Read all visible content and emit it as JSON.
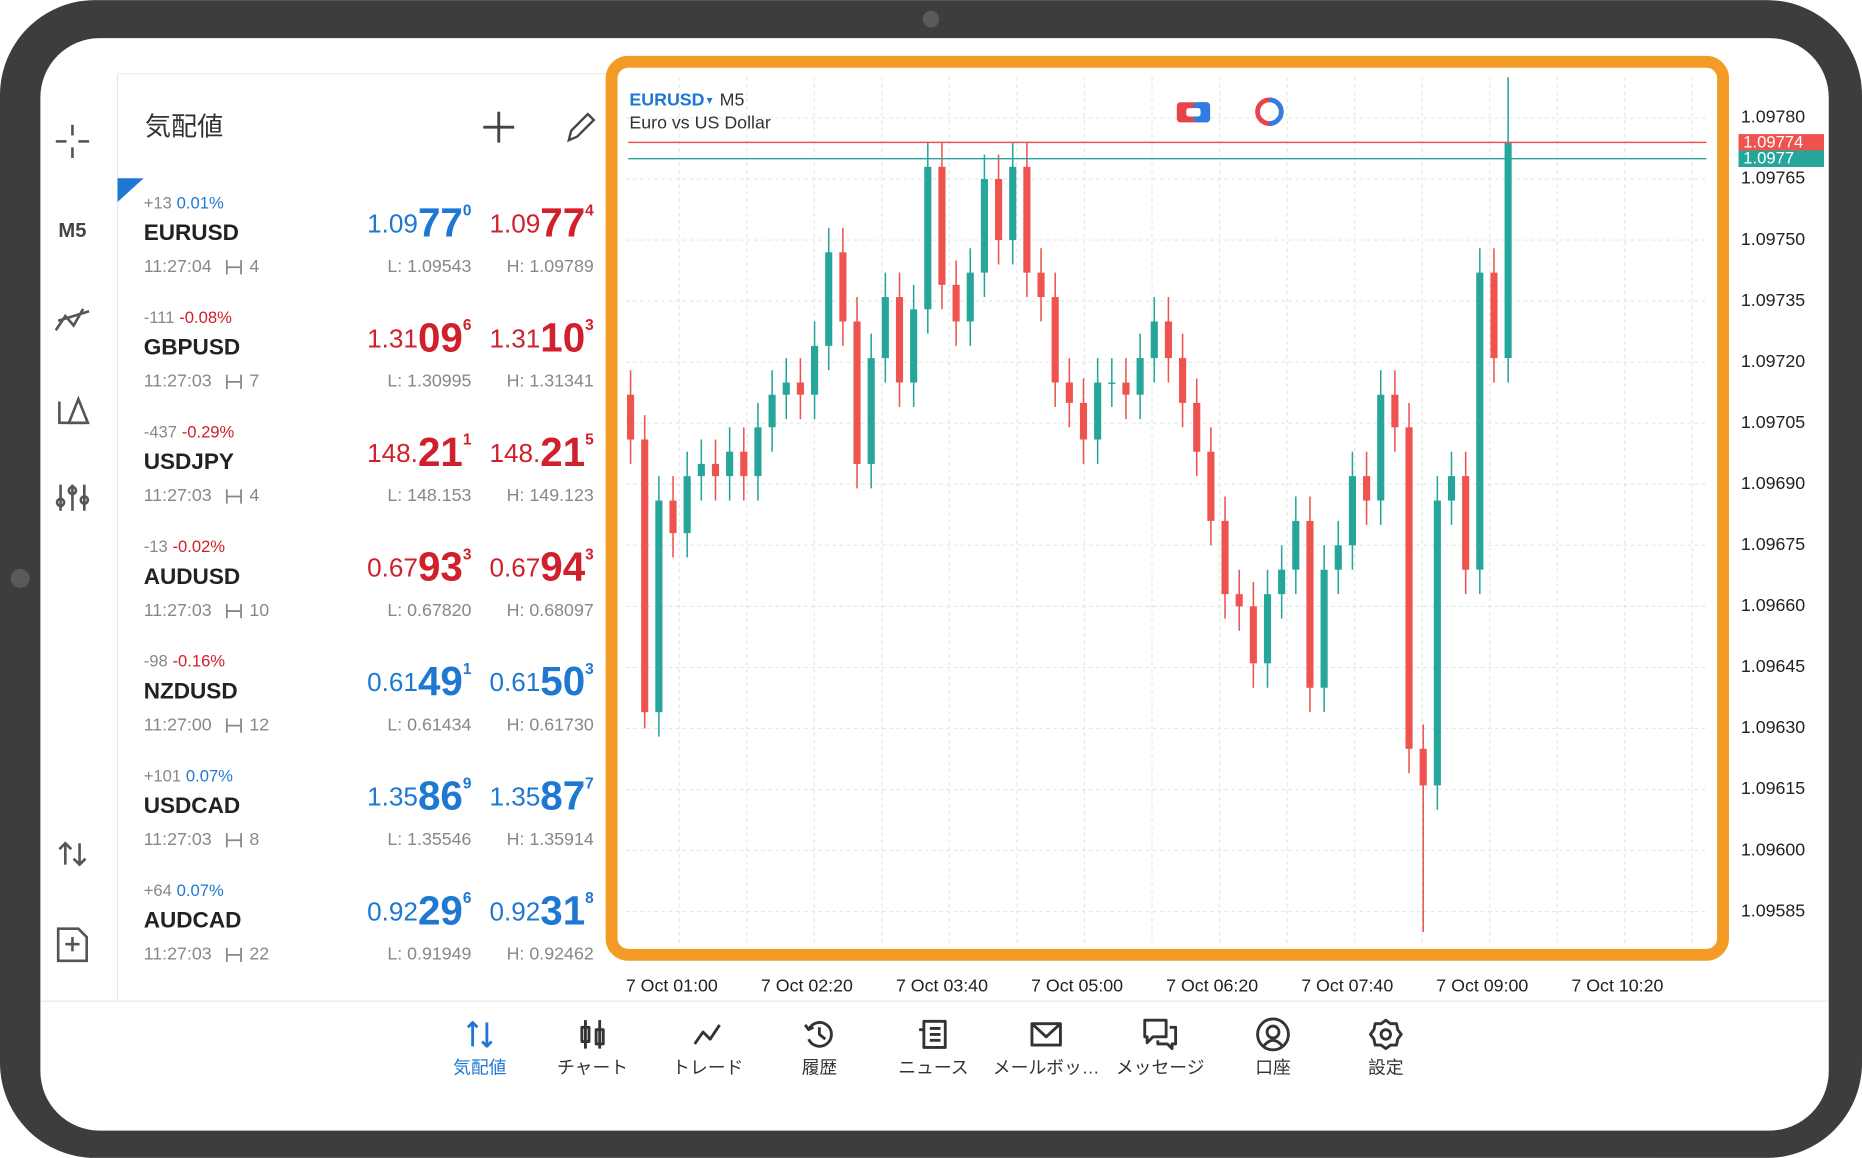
{
  "toolbar": {
    "timeframe": "M5"
  },
  "watchlist": {
    "title": "気配値",
    "quotes": [
      {
        "change": "+13",
        "change_pct": "0.01%",
        "change_color": "#1e78d2",
        "symbol": "EURUSD",
        "time": "11:27:04",
        "spread": "4",
        "bid": [
          "1.09",
          "77",
          "0"
        ],
        "bid_color": "#1e78d2",
        "ask": [
          "1.09",
          "77",
          "4"
        ],
        "ask_color": "#d0202b",
        "low": "L: 1.09543",
        "high": "H: 1.09789"
      },
      {
        "change": "-111",
        "change_pct": "-0.08%",
        "change_color": "#d0202b",
        "symbol": "GBPUSD",
        "time": "11:27:03",
        "spread": "7",
        "bid": [
          "1.31",
          "09",
          "6"
        ],
        "bid_color": "#d0202b",
        "ask": [
          "1.31",
          "10",
          "3"
        ],
        "ask_color": "#d0202b",
        "low": "L: 1.30995",
        "high": "H: 1.31341"
      },
      {
        "change": "-437",
        "change_pct": "-0.29%",
        "change_color": "#d0202b",
        "symbol": "USDJPY",
        "time": "11:27:03",
        "spread": "4",
        "bid": [
          "148.",
          "21",
          "1"
        ],
        "bid_color": "#d0202b",
        "ask": [
          "148.",
          "21",
          "5"
        ],
        "ask_color": "#d0202b",
        "low": "L: 148.153",
        "high": "H: 149.123"
      },
      {
        "change": "-13",
        "change_pct": "-0.02%",
        "change_color": "#d0202b",
        "symbol": "AUDUSD",
        "time": "11:27:03",
        "spread": "10",
        "bid": [
          "0.67",
          "93",
          "3"
        ],
        "bid_color": "#d0202b",
        "ask": [
          "0.67",
          "94",
          "3"
        ],
        "ask_color": "#d0202b",
        "low": "L: 0.67820",
        "high": "H: 0.68097"
      },
      {
        "change": "-98",
        "change_pct": "-0.16%",
        "change_color": "#d0202b",
        "symbol": "NZDUSD",
        "time": "11:27:00",
        "spread": "12",
        "bid": [
          "0.61",
          "49",
          "1"
        ],
        "bid_color": "#1e78d2",
        "ask": [
          "0.61",
          "50",
          "3"
        ],
        "ask_color": "#1e78d2",
        "low": "L: 0.61434",
        "high": "H: 0.61730"
      },
      {
        "change": "+101",
        "change_pct": "0.07%",
        "change_color": "#1e78d2",
        "symbol": "USDCAD",
        "time": "11:27:03",
        "spread": "8",
        "bid": [
          "1.35",
          "86",
          "9"
        ],
        "bid_color": "#1e78d2",
        "ask": [
          "1.35",
          "87",
          "7"
        ],
        "ask_color": "#1e78d2",
        "low": "L: 1.35546",
        "high": "H: 1.35914"
      },
      {
        "change": "+64",
        "change_pct": "0.07%",
        "change_color": "#1e78d2",
        "symbol": "AUDCAD",
        "time": "11:27:03",
        "spread": "22",
        "bid": [
          "0.92",
          "29",
          "6"
        ],
        "bid_color": "#1e78d2",
        "ask": [
          "0.92",
          "31",
          "8"
        ],
        "ask_color": "#1e78d2",
        "low": "L: 0.91949",
        "high": "H: 0.92462"
      }
    ]
  },
  "chart_data": {
    "type": "candlestick",
    "symbol": "EURUSD",
    "caret": "▾",
    "timeframe": "M5",
    "description": "Euro vs US Dollar",
    "up_color": "#26a69a",
    "down_color": "#ef5350",
    "ylim": [
      1.09577,
      1.0979
    ],
    "yticks": [
      {
        "value": 1.0978,
        "label": "1.09780"
      },
      1.09765,
      {
        "value": 1.0975,
        "label": "1.09750"
      },
      1.09735,
      {
        "value": 1.0972,
        "label": "1.09720"
      },
      1.09705,
      {
        "value": 1.0969,
        "label": "1.09690"
      },
      1.09675,
      {
        "value": 1.0966,
        "label": "1.09660"
      },
      1.09645,
      {
        "value": 1.0963,
        "label": "1.09630"
      },
      1.09615,
      {
        "value": 1.096,
        "label": "1.09600"
      },
      1.09585
    ],
    "x_labels": [
      "7 Oct 01:00",
      "7 Oct 02:20",
      "7 Oct 03:40",
      "7 Oct 05:00",
      "7 Oct 06:20",
      "7 Oct 07:40",
      "7 Oct 09:00",
      "7 Oct 10:20"
    ],
    "price_lines": [
      {
        "value": 1.09774,
        "color": "#ef5350"
      },
      {
        "value": 1.0977,
        "color": "#26a69a"
      }
    ],
    "grid": true,
    "candles": [
      [
        1.09712,
        1.09718,
        1.09695,
        1.09701
      ],
      [
        1.09701,
        1.09707,
        1.0963,
        1.09634
      ],
      [
        1.09634,
        1.09692,
        1.09628,
        1.09686
      ],
      [
        1.09686,
        1.09692,
        1.09672,
        1.09678
      ],
      [
        1.09678,
        1.09698,
        1.09672,
        1.09692
      ],
      [
        1.09692,
        1.09701,
        1.09686,
        1.09695
      ],
      [
        1.09695,
        1.09701,
        1.09686,
        1.09692
      ],
      [
        1.09692,
        1.09704,
        1.09686,
        1.09698
      ],
      [
        1.09698,
        1.09704,
        1.09686,
        1.09692
      ],
      [
        1.09692,
        1.0971,
        1.09686,
        1.09704
      ],
      [
        1.09704,
        1.09718,
        1.09698,
        1.09712
      ],
      [
        1.09712,
        1.09721,
        1.09706,
        1.09715
      ],
      [
        1.09715,
        1.09721,
        1.09706,
        1.09712
      ],
      [
        1.09712,
        1.0973,
        1.09706,
        1.09724
      ],
      [
        1.09724,
        1.09753,
        1.09718,
        1.09747
      ],
      [
        1.09747,
        1.09753,
        1.09724,
        1.0973
      ],
      [
        1.0973,
        1.09736,
        1.09689,
        1.09695
      ],
      [
        1.09695,
        1.09727,
        1.09689,
        1.09721
      ],
      [
        1.09721,
        1.09742,
        1.09715,
        1.09736
      ],
      [
        1.09736,
        1.09742,
        1.09709,
        1.09715
      ],
      [
        1.09715,
        1.09739,
        1.09709,
        1.09733
      ],
      [
        1.09733,
        1.09774,
        1.09727,
        1.09768
      ],
      [
        1.09768,
        1.09774,
        1.09733,
        1.09739
      ],
      [
        1.09739,
        1.09745,
        1.09724,
        1.0973
      ],
      [
        1.0973,
        1.09748,
        1.09724,
        1.09742
      ],
      [
        1.09742,
        1.09771,
        1.09736,
        1.09765
      ],
      [
        1.09765,
        1.09771,
        1.09744,
        1.0975
      ],
      [
        1.0975,
        1.09774,
        1.09744,
        1.09768
      ],
      [
        1.09768,
        1.09774,
        1.09736,
        1.09742
      ],
      [
        1.09742,
        1.09748,
        1.0973,
        1.09736
      ],
      [
        1.09736,
        1.09742,
        1.09709,
        1.09715
      ],
      [
        1.09715,
        1.09721,
        1.09704,
        1.0971
      ],
      [
        1.0971,
        1.09716,
        1.09695,
        1.09701
      ],
      [
        1.09701,
        1.09721,
        1.09695,
        1.09715
      ],
      [
        1.09715,
        1.09721,
        1.09709,
        1.09715
      ],
      [
        1.09715,
        1.09721,
        1.09706,
        1.09712
      ],
      [
        1.09712,
        1.09727,
        1.09706,
        1.09721
      ],
      [
        1.09721,
        1.09736,
        1.09715,
        1.0973
      ],
      [
        1.0973,
        1.09736,
        1.09715,
        1.09721
      ],
      [
        1.09721,
        1.09727,
        1.09704,
        1.0971
      ],
      [
        1.0971,
        1.09716,
        1.09692,
        1.09698
      ],
      [
        1.09698,
        1.09704,
        1.09675,
        1.09681
      ],
      [
        1.09681,
        1.09687,
        1.09657,
        1.09663
      ],
      [
        1.09663,
        1.09669,
        1.09654,
        1.0966
      ],
      [
        1.0966,
        1.09666,
        1.0964,
        1.09646
      ],
      [
        1.09646,
        1.09669,
        1.0964,
        1.09663
      ],
      [
        1.09663,
        1.09675,
        1.09657,
        1.09669
      ],
      [
        1.09669,
        1.09687,
        1.09663,
        1.09681
      ],
      [
        1.09681,
        1.09687,
        1.09634,
        1.0964
      ],
      [
        1.0964,
        1.09675,
        1.09634,
        1.09669
      ],
      [
        1.09669,
        1.09681,
        1.09663,
        1.09675
      ],
      [
        1.09675,
        1.09698,
        1.09669,
        1.09692
      ],
      [
        1.09692,
        1.09698,
        1.0968,
        1.09686
      ],
      [
        1.09686,
        1.09718,
        1.0968,
        1.09712
      ],
      [
        1.09712,
        1.09718,
        1.09698,
        1.09704
      ],
      [
        1.09704,
        1.0971,
        1.09619,
        1.09625
      ],
      [
        1.09625,
        1.09631,
        1.0958,
        1.09616
      ],
      [
        1.09616,
        1.09692,
        1.0961,
        1.09686
      ],
      [
        1.09686,
        1.09698,
        1.0968,
        1.09692
      ],
      [
        1.09692,
        1.09698,
        1.09663,
        1.09669
      ],
      [
        1.09669,
        1.09748,
        1.09663,
        1.09742
      ],
      [
        1.09742,
        1.09748,
        1.09715,
        1.09721
      ],
      [
        1.09721,
        1.0979,
        1.09715,
        1.09774
      ]
    ]
  },
  "bottom_nav": [
    "気配値",
    "チャート",
    "トレード",
    "履歴",
    "ニュース",
    "メールボッ…",
    "メッセージ",
    "口座",
    "設定"
  ]
}
